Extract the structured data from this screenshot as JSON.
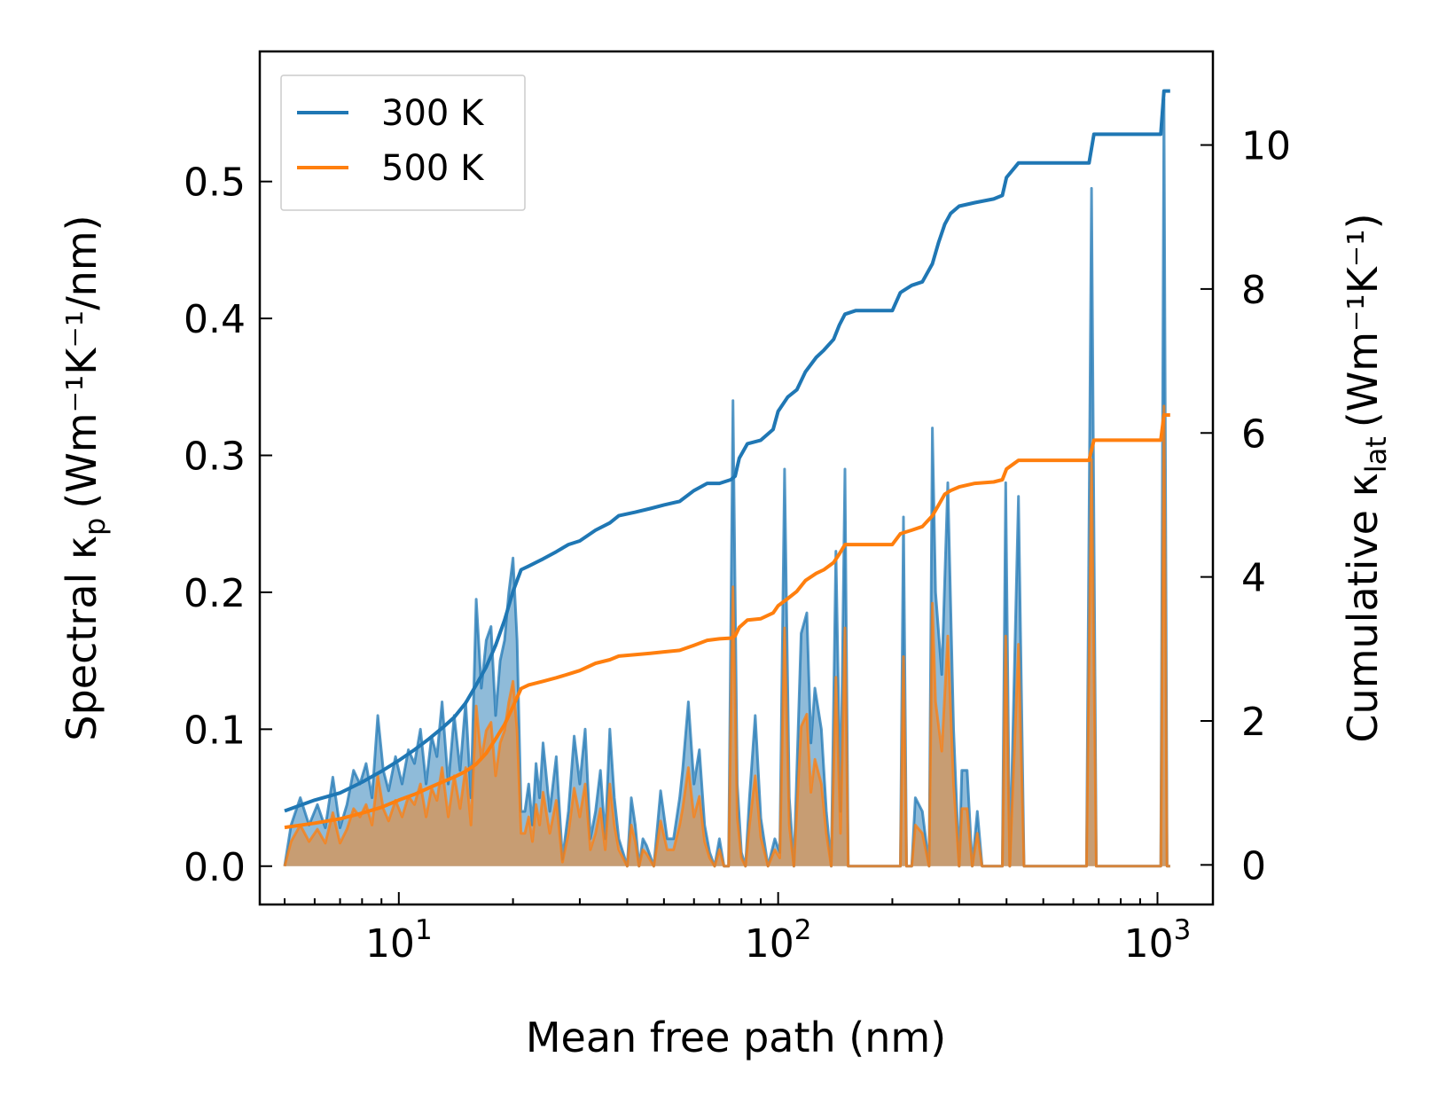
{
  "chart_data": {
    "type": "line",
    "xscale": "log",
    "xlim": [
      4.3,
      1400
    ],
    "xlabel": "Mean free path (nm)",
    "x_ticks": [
      {
        "value": 10,
        "base": "10",
        "exp": "1"
      },
      {
        "value": 100,
        "base": "10",
        "exp": "2"
      },
      {
        "value": 1000,
        "base": "10",
        "exp": "3"
      }
    ],
    "y_left": {
      "label_main": "Spectral κ",
      "label_sub": "p",
      "label_units": "(Wm⁻¹K⁻¹/nm)",
      "lim": [
        -0.028,
        0.595
      ],
      "ticks": [
        0.0,
        0.1,
        0.2,
        0.3,
        0.4,
        0.5
      ],
      "tick_labels": [
        "0.0",
        "0.1",
        "0.2",
        "0.3",
        "0.4",
        "0.5"
      ]
    },
    "y_right": {
      "label_main": "Cumulative κ",
      "label_sub": "lat",
      "label_units": "(Wm⁻¹K⁻¹)",
      "lim": [
        -0.55,
        11.3
      ],
      "ticks": [
        0,
        2,
        4,
        6,
        8,
        10
      ],
      "tick_labels": [
        "0",
        "2",
        "4",
        "6",
        "8",
        "10"
      ]
    },
    "legend": {
      "position": "top-left"
    },
    "series": [
      {
        "name": "300 K",
        "color": "#1f77b4",
        "fill_color": "#1f77b4",
        "axis": "right",
        "cumulative": [
          [
            5.0,
            0.75
          ],
          [
            6,
            0.9
          ],
          [
            7,
            1.0
          ],
          [
            8,
            1.15
          ],
          [
            9,
            1.3
          ],
          [
            10,
            1.45
          ],
          [
            11,
            1.6
          ],
          [
            12,
            1.75
          ],
          [
            13,
            1.9
          ],
          [
            14,
            2.05
          ],
          [
            15,
            2.25
          ],
          [
            16,
            2.5
          ],
          [
            17,
            2.75
          ],
          [
            18,
            3.05
          ],
          [
            19,
            3.4
          ],
          [
            20,
            3.8
          ],
          [
            21,
            4.1
          ],
          [
            22,
            4.15
          ],
          [
            24,
            4.25
          ],
          [
            26,
            4.35
          ],
          [
            28,
            4.45
          ],
          [
            30,
            4.5
          ],
          [
            33,
            4.65
          ],
          [
            36,
            4.75
          ],
          [
            38,
            4.85
          ],
          [
            42,
            4.9
          ],
          [
            46,
            4.95
          ],
          [
            50,
            5.0
          ],
          [
            55,
            5.05
          ],
          [
            60,
            5.2
          ],
          [
            65,
            5.3
          ],
          [
            70,
            5.3
          ],
          [
            75,
            5.35
          ],
          [
            77,
            5.4
          ],
          [
            79,
            5.65
          ],
          [
            83,
            5.85
          ],
          [
            90,
            5.9
          ],
          [
            97,
            6.05
          ],
          [
            100,
            6.3
          ],
          [
            106,
            6.5
          ],
          [
            112,
            6.6
          ],
          [
            118,
            6.85
          ],
          [
            126,
            7.05
          ],
          [
            132,
            7.15
          ],
          [
            140,
            7.3
          ],
          [
            145,
            7.5
          ],
          [
            150,
            7.65
          ],
          [
            160,
            7.7
          ],
          [
            200,
            7.7
          ],
          [
            210,
            7.95
          ],
          [
            225,
            8.05
          ],
          [
            240,
            8.1
          ],
          [
            255,
            8.35
          ],
          [
            265,
            8.65
          ],
          [
            275,
            8.9
          ],
          [
            285,
            9.05
          ],
          [
            300,
            9.15
          ],
          [
            330,
            9.2
          ],
          [
            370,
            9.25
          ],
          [
            390,
            9.3
          ],
          [
            400,
            9.55
          ],
          [
            430,
            9.75
          ],
          [
            660,
            9.75
          ],
          [
            680,
            10.15
          ],
          [
            1020,
            10.15
          ],
          [
            1040,
            10.75
          ],
          [
            1080,
            10.75
          ]
        ],
        "spectral": [
          [
            5.0,
            0.0
          ],
          [
            5.2,
            0.03
          ],
          [
            5.5,
            0.05
          ],
          [
            5.8,
            0.03
          ],
          [
            6.1,
            0.045
          ],
          [
            6.4,
            0.028
          ],
          [
            6.7,
            0.065
          ],
          [
            7.0,
            0.028
          ],
          [
            7.3,
            0.045
          ],
          [
            7.6,
            0.07
          ],
          [
            7.9,
            0.06
          ],
          [
            8.2,
            0.075
          ],
          [
            8.5,
            0.05
          ],
          [
            8.8,
            0.11
          ],
          [
            9.1,
            0.07
          ],
          [
            9.4,
            0.055
          ],
          [
            9.8,
            0.08
          ],
          [
            10.2,
            0.06
          ],
          [
            10.6,
            0.085
          ],
          [
            11.0,
            0.075
          ],
          [
            11.4,
            0.1
          ],
          [
            11.8,
            0.06
          ],
          [
            12.2,
            0.095
          ],
          [
            12.6,
            0.08
          ],
          [
            13.0,
            0.12
          ],
          [
            13.5,
            0.06
          ],
          [
            14.0,
            0.11
          ],
          [
            14.5,
            0.07
          ],
          [
            15.0,
            0.12
          ],
          [
            15.5,
            0.05
          ],
          [
            16.0,
            0.195
          ],
          [
            16.5,
            0.13
          ],
          [
            17.0,
            0.165
          ],
          [
            17.5,
            0.175
          ],
          [
            18.0,
            0.11
          ],
          [
            18.5,
            0.15
          ],
          [
            19.0,
            0.165
          ],
          [
            19.5,
            0.2
          ],
          [
            20.0,
            0.225
          ],
          [
            20.5,
            0.165
          ],
          [
            21.0,
            0.04
          ],
          [
            21.5,
            0.04
          ],
          [
            22.0,
            0.06
          ],
          [
            22.5,
            0.03
          ],
          [
            23.0,
            0.075
          ],
          [
            23.5,
            0.05
          ],
          [
            24.0,
            0.09
          ],
          [
            25.0,
            0.04
          ],
          [
            26.0,
            0.08
          ],
          [
            27.0,
            0.005
          ],
          [
            28.0,
            0.04
          ],
          [
            29.0,
            0.095
          ],
          [
            30.0,
            0.06
          ],
          [
            31.0,
            0.1
          ],
          [
            32.0,
            0.02
          ],
          [
            33.0,
            0.04
          ],
          [
            34.0,
            0.07
          ],
          [
            35.0,
            0.02
          ],
          [
            36.0,
            0.1
          ],
          [
            37.0,
            0.05
          ],
          [
            38.0,
            0.02
          ],
          [
            39.0,
            0.01
          ],
          [
            40.0,
            0.0
          ],
          [
            41.0,
            0.05
          ],
          [
            42.0,
            0.03
          ],
          [
            43.0,
            0.0
          ],
          [
            44.0,
            0.02
          ],
          [
            45.0,
            0.015
          ],
          [
            47.0,
            0.0
          ],
          [
            49.0,
            0.055
          ],
          [
            51.0,
            0.02
          ],
          [
            53.0,
            0.02
          ],
          [
            55.0,
            0.05
          ],
          [
            56.0,
            0.07
          ],
          [
            58.0,
            0.12
          ],
          [
            60.0,
            0.06
          ],
          [
            62.0,
            0.085
          ],
          [
            64.0,
            0.03
          ],
          [
            66.0,
            0.01
          ],
          [
            68.0,
            0.0
          ],
          [
            70.0,
            0.02
          ],
          [
            72.0,
            0.0
          ],
          [
            74.0,
            0.0
          ],
          [
            76.0,
            0.34
          ],
          [
            78.0,
            0.06
          ],
          [
            80.0,
            0.01
          ],
          [
            82.0,
            0.0
          ],
          [
            84.0,
            0.05
          ],
          [
            87.0,
            0.11
          ],
          [
            90.0,
            0.035
          ],
          [
            94.0,
            0.0
          ],
          [
            98.0,
            0.02
          ],
          [
            101.0,
            0.01
          ],
          [
            104.0,
            0.29
          ],
          [
            107.0,
            0.05
          ],
          [
            110.0,
            0.0
          ],
          [
            115.0,
            0.17
          ],
          [
            119.0,
            0.185
          ],
          [
            122.0,
            0.09
          ],
          [
            125.0,
            0.13
          ],
          [
            130.0,
            0.1
          ],
          [
            134.0,
            0.04
          ],
          [
            138.0,
            0.0
          ],
          [
            142.0,
            0.23
          ],
          [
            146.0,
            0.04
          ],
          [
            150.0,
            0.29
          ],
          [
            153.0,
            0.0
          ],
          [
            160.0,
            0.0
          ],
          [
            200.0,
            0.0
          ],
          [
            210.0,
            0.0
          ],
          [
            214.0,
            0.255
          ],
          [
            218.0,
            0.0
          ],
          [
            225.0,
            0.0
          ],
          [
            230.0,
            0.05
          ],
          [
            240.0,
            0.04
          ],
          [
            250.0,
            0.0
          ],
          [
            255.0,
            0.32
          ],
          [
            260.0,
            0.2
          ],
          [
            270.0,
            0.14
          ],
          [
            280.0,
            0.28
          ],
          [
            290.0,
            0.1
          ],
          [
            300.0,
            0.0
          ],
          [
            305.0,
            0.07
          ],
          [
            315.0,
            0.07
          ],
          [
            325.0,
            0.0
          ],
          [
            335.0,
            0.04
          ],
          [
            345.0,
            0.0
          ],
          [
            355.0,
            0.0
          ],
          [
            370.0,
            0.0
          ],
          [
            390.0,
            0.0
          ],
          [
            398.0,
            0.28
          ],
          [
            408.0,
            0.0
          ],
          [
            430.0,
            0.27
          ],
          [
            445.0,
            0.0
          ],
          [
            650.0,
            0.0
          ],
          [
            670.0,
            0.495
          ],
          [
            690.0,
            0.0
          ],
          [
            1000.0,
            0.0
          ],
          [
            1020.0,
            0.0
          ],
          [
            1040.0,
            0.56
          ],
          [
            1060.0,
            0.0
          ],
          [
            1080.0,
            0.0
          ]
        ]
      },
      {
        "name": "500 K",
        "color": "#ff7f0e",
        "fill_color": "#ff7f0e",
        "axis": "right",
        "cumulative_scale": 0.576,
        "spectral_scale": 0.6,
        "cumulative": [
          [
            5.0,
            0.52
          ],
          [
            6,
            0.58
          ],
          [
            7,
            0.64
          ],
          [
            8,
            0.72
          ],
          [
            9,
            0.8
          ],
          [
            10,
            0.9
          ],
          [
            11,
            0.98
          ],
          [
            12,
            1.07
          ],
          [
            13,
            1.15
          ],
          [
            14,
            1.22
          ],
          [
            15,
            1.3
          ],
          [
            16,
            1.4
          ],
          [
            17,
            1.55
          ],
          [
            18,
            1.75
          ],
          [
            19,
            1.95
          ],
          [
            20,
            2.2
          ],
          [
            21,
            2.45
          ],
          [
            22,
            2.5
          ],
          [
            24,
            2.55
          ],
          [
            26,
            2.6
          ],
          [
            28,
            2.65
          ],
          [
            30,
            2.7
          ],
          [
            33,
            2.8
          ],
          [
            36,
            2.85
          ],
          [
            38,
            2.9
          ],
          [
            42,
            2.92
          ],
          [
            46,
            2.94
          ],
          [
            50,
            2.96
          ],
          [
            55,
            2.98
          ],
          [
            60,
            3.05
          ],
          [
            65,
            3.12
          ],
          [
            70,
            3.14
          ],
          [
            75,
            3.15
          ],
          [
            77,
            3.18
          ],
          [
            79,
            3.3
          ],
          [
            83,
            3.4
          ],
          [
            90,
            3.42
          ],
          [
            97,
            3.5
          ],
          [
            100,
            3.6
          ],
          [
            106,
            3.7
          ],
          [
            112,
            3.8
          ],
          [
            118,
            3.95
          ],
          [
            126,
            4.05
          ],
          [
            132,
            4.1
          ],
          [
            140,
            4.2
          ],
          [
            145,
            4.32
          ],
          [
            150,
            4.45
          ],
          [
            160,
            4.45
          ],
          [
            200,
            4.45
          ],
          [
            210,
            4.6
          ],
          [
            225,
            4.65
          ],
          [
            240,
            4.7
          ],
          [
            255,
            4.85
          ],
          [
            265,
            5.0
          ],
          [
            275,
            5.15
          ],
          [
            285,
            5.2
          ],
          [
            300,
            5.25
          ],
          [
            330,
            5.3
          ],
          [
            370,
            5.32
          ],
          [
            390,
            5.35
          ],
          [
            400,
            5.5
          ],
          [
            430,
            5.62
          ],
          [
            660,
            5.62
          ],
          [
            680,
            5.9
          ],
          [
            1020,
            5.9
          ],
          [
            1040,
            6.25
          ],
          [
            1080,
            6.25
          ]
        ]
      }
    ]
  }
}
